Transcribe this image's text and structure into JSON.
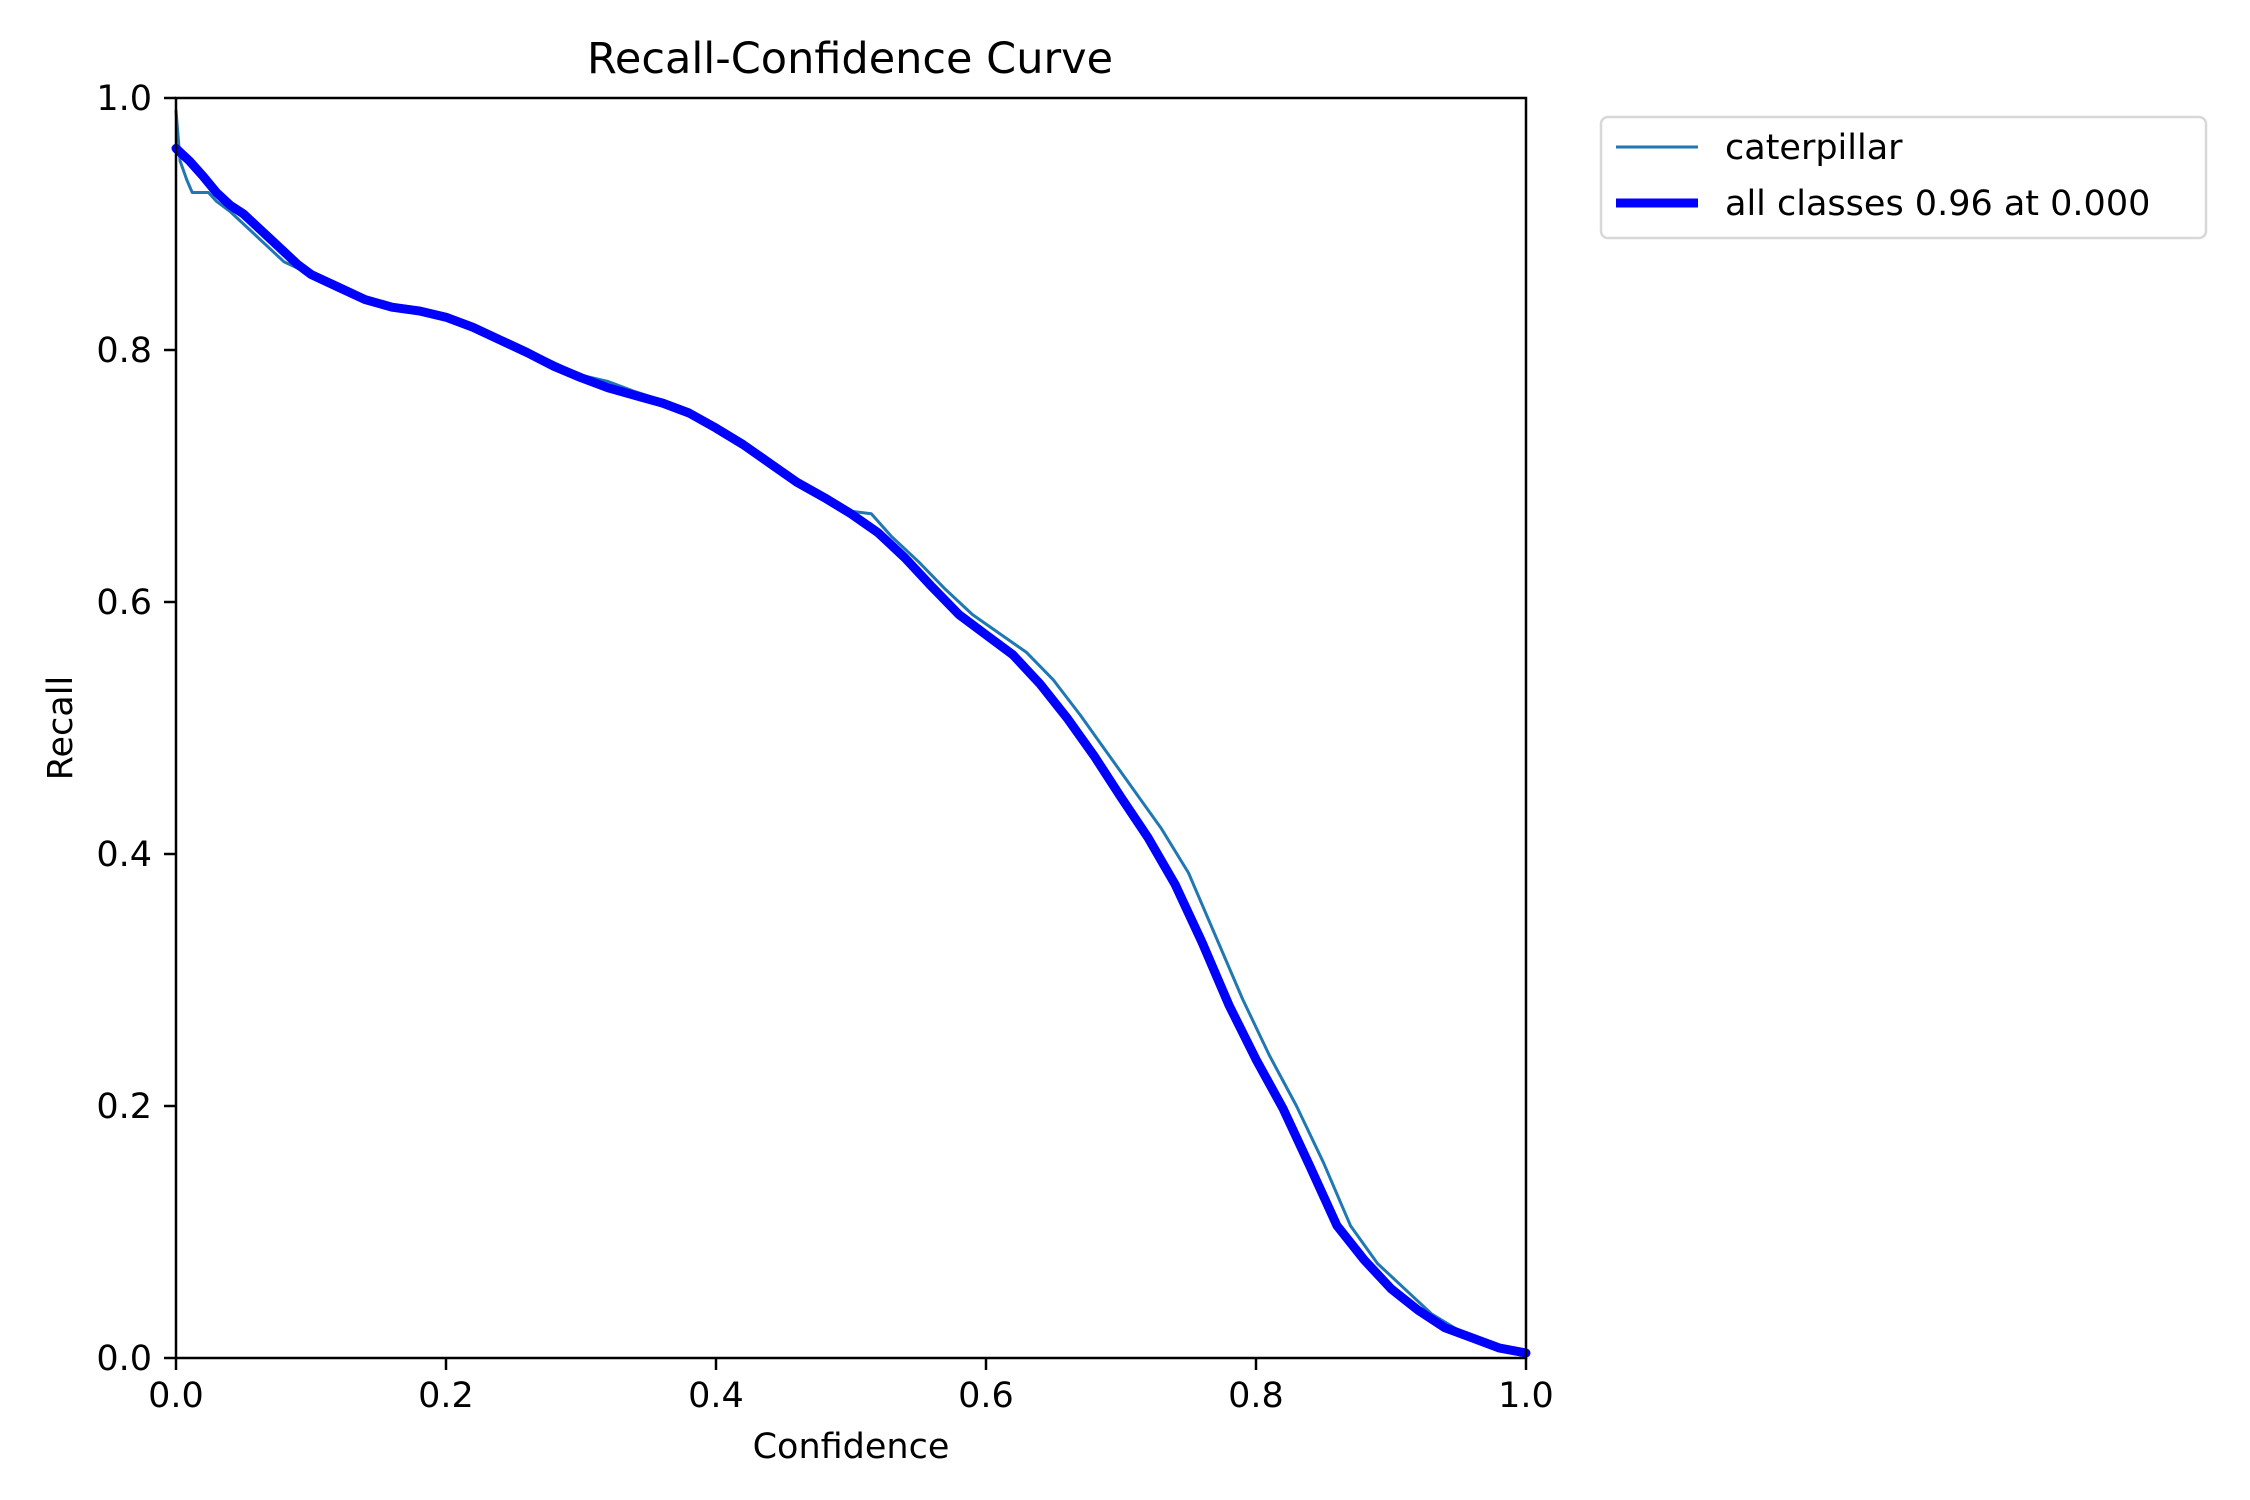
{
  "chart_data": {
    "type": "line",
    "title": "Recall-Confidence Curve",
    "xlabel": "Confidence",
    "ylabel": "Recall",
    "xlim": [
      0,
      1
    ],
    "ylim": [
      0,
      1
    ],
    "xticks": [
      "0.0",
      "0.2",
      "0.4",
      "0.6",
      "0.8",
      "1.0"
    ],
    "yticks": [
      "0.0",
      "0.2",
      "0.4",
      "0.6",
      "0.8",
      "1.0"
    ],
    "grid": false,
    "legend_position": "outside-top-right",
    "series": [
      {
        "name": "caterpillar",
        "color": "#1f77b4",
        "x": [
          0.0,
          0.003,
          0.008,
          0.012,
          0.016,
          0.024,
          0.03,
          0.04,
          0.05,
          0.06,
          0.07,
          0.08,
          0.09,
          0.1,
          0.12,
          0.14,
          0.16,
          0.18,
          0.2,
          0.22,
          0.24,
          0.26,
          0.28,
          0.3,
          0.32,
          0.34,
          0.36,
          0.38,
          0.4,
          0.42,
          0.44,
          0.46,
          0.48,
          0.5,
          0.515,
          0.53,
          0.55,
          0.57,
          0.59,
          0.61,
          0.63,
          0.65,
          0.67,
          0.69,
          0.71,
          0.73,
          0.75,
          0.77,
          0.79,
          0.81,
          0.83,
          0.85,
          0.87,
          0.89,
          0.91,
          0.93,
          0.95,
          0.97,
          0.99,
          1.0
        ],
        "y": [
          0.99,
          0.95,
          0.935,
          0.925,
          0.925,
          0.925,
          0.918,
          0.91,
          0.9,
          0.89,
          0.88,
          0.87,
          0.865,
          0.86,
          0.848,
          0.838,
          0.833,
          0.831,
          0.828,
          0.82,
          0.81,
          0.8,
          0.79,
          0.78,
          0.775,
          0.767,
          0.76,
          0.75,
          0.74,
          0.725,
          0.708,
          0.695,
          0.683,
          0.672,
          0.67,
          0.652,
          0.632,
          0.61,
          0.59,
          0.575,
          0.56,
          0.538,
          0.51,
          0.48,
          0.45,
          0.42,
          0.385,
          0.335,
          0.285,
          0.24,
          0.2,
          0.155,
          0.105,
          0.075,
          0.055,
          0.035,
          0.022,
          0.013,
          0.006,
          0.005
        ]
      },
      {
        "name": "all classes 0.96 at 0.000",
        "color": "#0000ff",
        "x": [
          0.0,
          0.01,
          0.02,
          0.03,
          0.04,
          0.05,
          0.06,
          0.07,
          0.08,
          0.09,
          0.1,
          0.12,
          0.14,
          0.16,
          0.18,
          0.2,
          0.22,
          0.24,
          0.26,
          0.28,
          0.3,
          0.32,
          0.34,
          0.36,
          0.38,
          0.4,
          0.42,
          0.44,
          0.46,
          0.48,
          0.5,
          0.52,
          0.54,
          0.56,
          0.58,
          0.6,
          0.62,
          0.64,
          0.66,
          0.68,
          0.7,
          0.72,
          0.74,
          0.76,
          0.78,
          0.8,
          0.82,
          0.84,
          0.86,
          0.88,
          0.9,
          0.92,
          0.94,
          0.96,
          0.98,
          1.0
        ],
        "y": [
          0.96,
          0.95,
          0.938,
          0.925,
          0.915,
          0.908,
          0.898,
          0.888,
          0.878,
          0.868,
          0.86,
          0.85,
          0.84,
          0.834,
          0.831,
          0.826,
          0.818,
          0.808,
          0.798,
          0.787,
          0.778,
          0.77,
          0.764,
          0.758,
          0.75,
          0.738,
          0.725,
          0.71,
          0.695,
          0.683,
          0.67,
          0.655,
          0.635,
          0.612,
          0.59,
          0.574,
          0.558,
          0.535,
          0.508,
          0.478,
          0.445,
          0.413,
          0.376,
          0.33,
          0.28,
          0.237,
          0.198,
          0.152,
          0.105,
          0.078,
          0.055,
          0.038,
          0.024,
          0.016,
          0.008,
          0.004
        ]
      }
    ]
  }
}
